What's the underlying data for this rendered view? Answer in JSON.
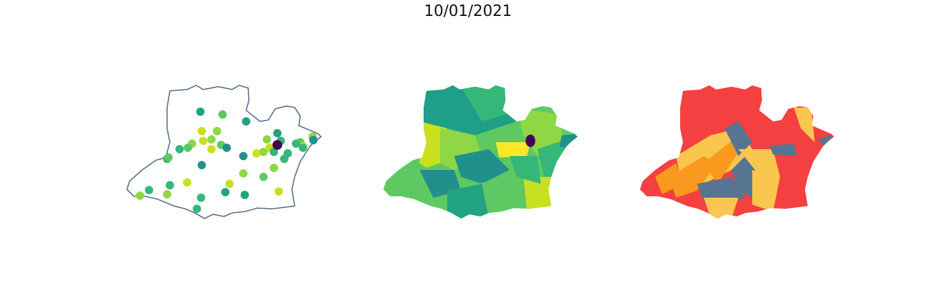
{
  "title": "10/01/2021",
  "colors": {
    "outline": "#56708a",
    "viridis": [
      "#440154",
      "#21908c",
      "#35b779",
      "#5ec962",
      "#8fd744",
      "#c8e020",
      "#fde725"
    ],
    "category": [
      "#f44040",
      "#f99a1f",
      "#f9c74f",
      "#577590"
    ]
  },
  "panels": [
    {
      "name": "point-map"
    },
    {
      "name": "choropleth-map"
    },
    {
      "name": "category-map"
    }
  ]
}
